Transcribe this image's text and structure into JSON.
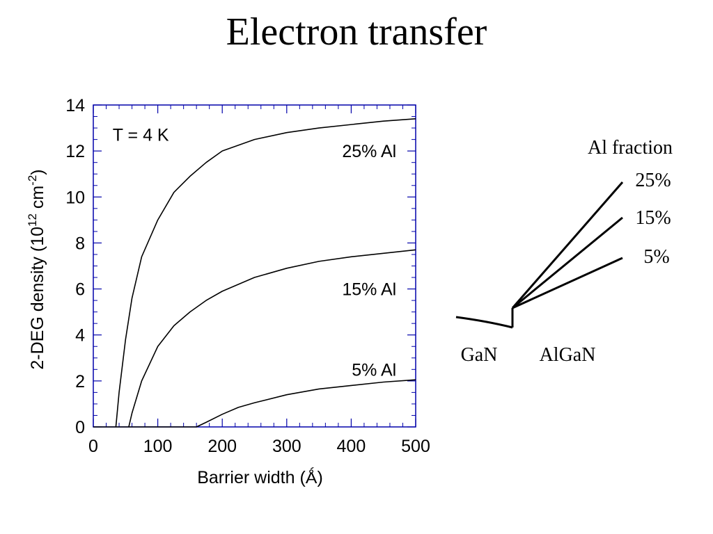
{
  "slide": {
    "title": "Electron transfer"
  },
  "chart_data": {
    "type": "line",
    "title": "",
    "xlabel": "Barrier width (Ǻ)",
    "ylabel": "2-DEG density (10",
    "ylabel_sup1": "12",
    "ylabel_mid": " cm",
    "ylabel_sup2": "-2",
    "ylabel_end": ")",
    "annotation": "T = 4 K",
    "xlim": [
      0,
      500
    ],
    "ylim": [
      0,
      14
    ],
    "xticks": [
      0,
      100,
      200,
      300,
      400,
      500
    ],
    "yticks": [
      0,
      2,
      4,
      6,
      8,
      10,
      12,
      14
    ],
    "axis_color": "#0000aa",
    "series": [
      {
        "name": "25% Al",
        "x": [
          35,
          40,
          50,
          60,
          75,
          100,
          125,
          150,
          175,
          200,
          250,
          300,
          350,
          400,
          450,
          500
        ],
        "y": [
          0,
          1.5,
          3.8,
          5.6,
          7.4,
          9.0,
          10.2,
          10.9,
          11.5,
          12.0,
          12.5,
          12.8,
          13.0,
          13.15,
          13.3,
          13.4
        ]
      },
      {
        "name": "15% Al",
        "x": [
          55,
          60,
          75,
          100,
          125,
          150,
          175,
          200,
          250,
          300,
          350,
          400,
          450,
          500
        ],
        "y": [
          0,
          0.6,
          2.0,
          3.5,
          4.4,
          5.0,
          5.5,
          5.9,
          6.5,
          6.9,
          7.2,
          7.4,
          7.55,
          7.7
        ]
      },
      {
        "name": "5% Al",
        "x": [
          0,
          160,
          175,
          200,
          225,
          250,
          300,
          350,
          400,
          450,
          500
        ],
        "y": [
          0,
          0,
          0.2,
          0.55,
          0.85,
          1.05,
          1.4,
          1.65,
          1.8,
          1.95,
          2.05
        ]
      }
    ]
  },
  "diagram": {
    "legend_title": "Al fraction",
    "fractions": [
      "25%",
      "15%",
      "5%"
    ],
    "left_label": "GaN",
    "right_label": "AlGaN"
  }
}
